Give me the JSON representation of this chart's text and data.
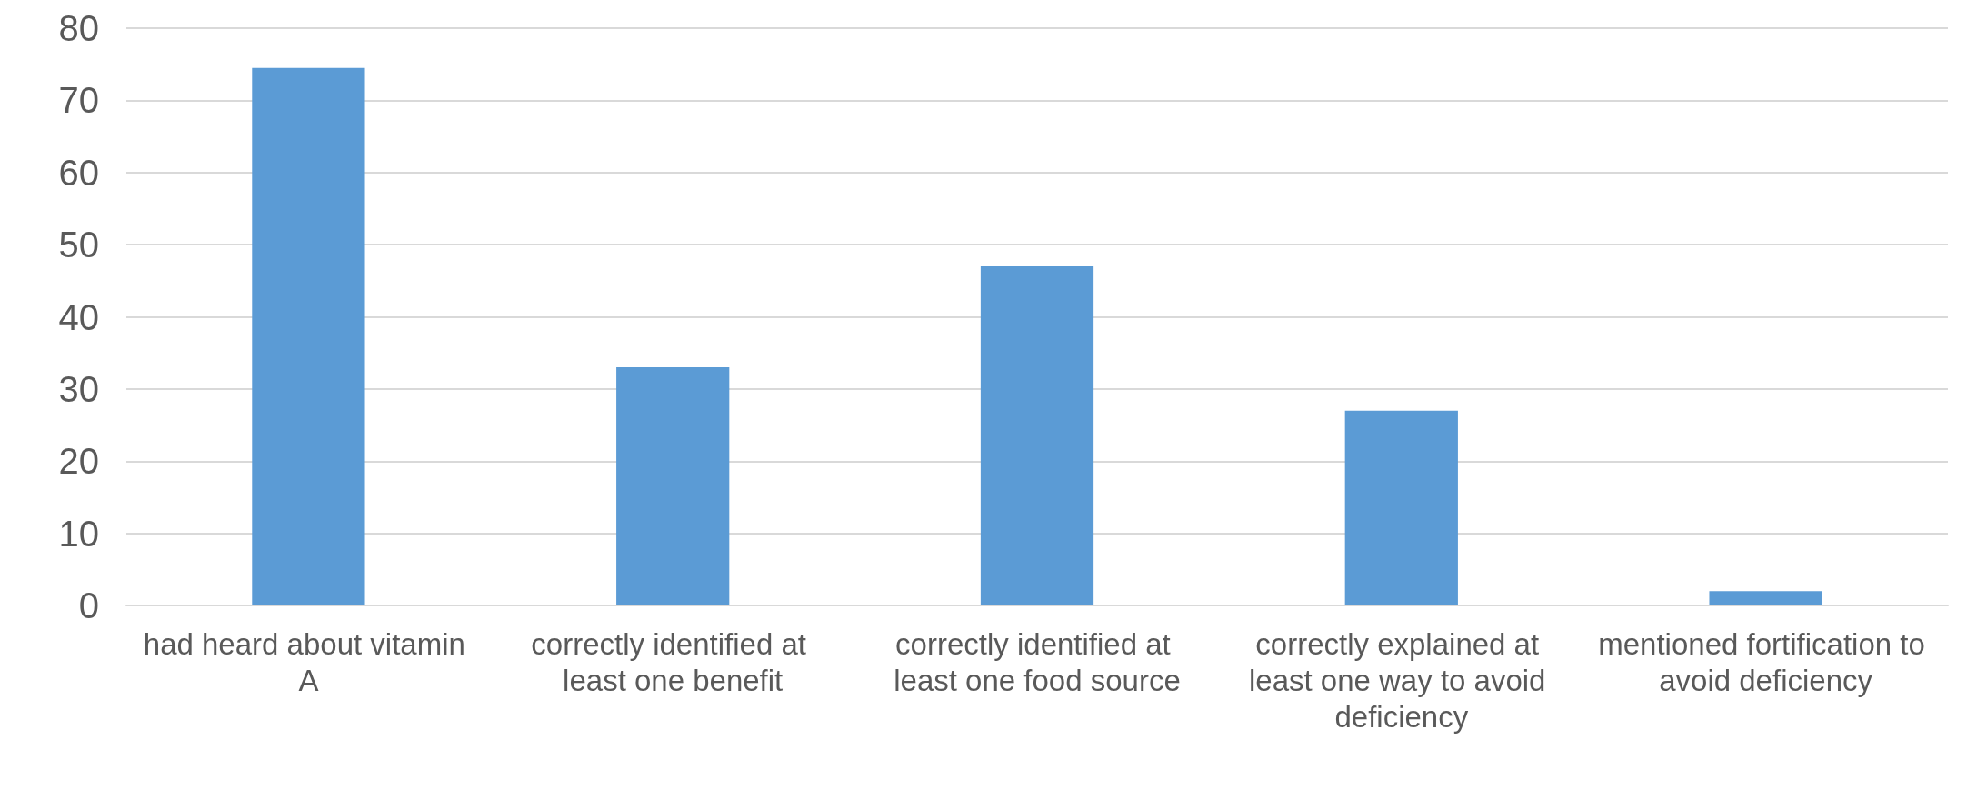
{
  "chart_data": {
    "type": "bar",
    "categories": [
      "had heard about vitamin A",
      "correctly identified at least one benefit",
      "correctly identified at least one food source",
      "correctly explained at least one way to avoid deficiency",
      "mentioned fortification to avoid deficiency"
    ],
    "values": [
      74.5,
      33,
      47,
      27,
      2
    ],
    "color": "#5b9bd5",
    "ylim": [
      0,
      80
    ],
    "yticks": [
      0,
      10,
      20,
      30,
      40,
      50,
      60,
      70,
      80
    ],
    "grid": "y"
  }
}
